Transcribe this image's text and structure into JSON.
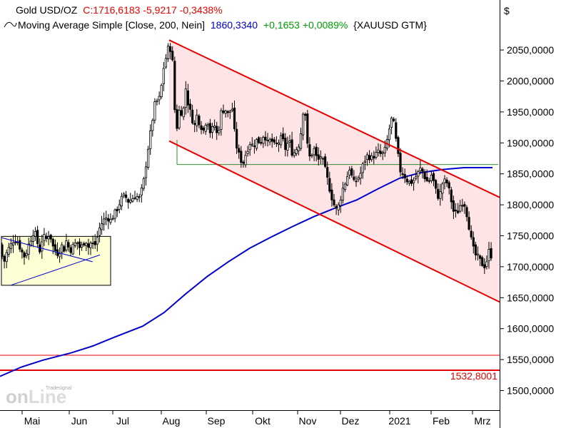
{
  "title": {
    "instrument": "Gold USD/OZ",
    "quote": "C:1716,6183 -5,9217 -0,3438%",
    "indicator": "Moving Average Simple [Close, 200, Nein]",
    "ma_value": "1860,3340",
    "ma_change": "+0,1653 +0,0089%",
    "symbol": "{XAUUSD GTM}"
  },
  "currency_symbol": "$",
  "annotation_label": "1532,8001",
  "logo": {
    "top": "Tradesignal",
    "word_a": "on",
    "word_b": "Line"
  },
  "colors": {
    "bull_candle": "#ffffff",
    "bear_candle": "#000000",
    "moving_average": "#0000cc",
    "channel": "#e60000",
    "channel_fill": "#ffe4e6",
    "box_fill": "#ffffd6",
    "support_line": "#2e8b2e",
    "negative_text": "#e60000",
    "positive_text": "#009900"
  },
  "chart_data": {
    "type": "candlestick",
    "x": [
      "Mai",
      "Jun",
      "Jul",
      "Aug",
      "Sep",
      "Okt",
      "Nov",
      "Dez",
      "2021",
      "Feb",
      "Mrz"
    ],
    "yticks": [
      1500,
      1550,
      1600,
      1650,
      1700,
      1750,
      1800,
      1850,
      1900,
      1950,
      2000,
      2050
    ],
    "ytick_labels": [
      "1500,0000",
      "1550,0000",
      "1600,0000",
      "1650,0000",
      "1700,0000",
      "1750,0000",
      "1800,0000",
      "1850,0000",
      "1900,0000",
      "1950,0000",
      "2000,0000",
      "2050,0000"
    ],
    "ylim": [
      1475,
      2090
    ],
    "close_path": [
      [
        0,
        1735
      ],
      [
        5,
        1705
      ],
      [
        10,
        1725
      ],
      [
        15,
        1735
      ],
      [
        20,
        1745
      ],
      [
        25,
        1740
      ],
      [
        30,
        1725
      ],
      [
        35,
        1715
      ],
      [
        40,
        1735
      ],
      [
        45,
        1750
      ],
      [
        48,
        1760
      ],
      [
        52,
        1740
      ],
      [
        56,
        1725
      ],
      [
        60,
        1750
      ],
      [
        65,
        1745
      ],
      [
        70,
        1755
      ],
      [
        73,
        1735
      ],
      [
        78,
        1725
      ],
      [
        82,
        1720
      ],
      [
        86,
        1735
      ],
      [
        90,
        1728
      ],
      [
        93,
        1742
      ],
      [
        98,
        1725
      ],
      [
        103,
        1735
      ],
      [
        108,
        1740
      ],
      [
        112,
        1730
      ],
      [
        116,
        1735
      ],
      [
        120,
        1745
      ],
      [
        123,
        1730
      ],
      [
        127,
        1738
      ],
      [
        133,
        1735
      ],
      [
        137,
        1750
      ],
      [
        140,
        1765
      ],
      [
        145,
        1775
      ],
      [
        150,
        1780
      ],
      [
        155,
        1775
      ],
      [
        160,
        1785
      ],
      [
        165,
        1795
      ],
      [
        170,
        1810
      ],
      [
        175,
        1815
      ],
      [
        180,
        1805
      ],
      [
        185,
        1810
      ],
      [
        190,
        1815
      ],
      [
        195,
        1810
      ],
      [
        200,
        1830
      ],
      [
        203,
        1850
      ],
      [
        206,
        1880
      ],
      [
        210,
        1910
      ],
      [
        214,
        1940
      ],
      [
        218,
        1970
      ],
      [
        222,
        1965
      ],
      [
        226,
        1990
      ],
      [
        229,
        2020
      ],
      [
        233,
        2040
      ],
      [
        237,
        2060
      ],
      [
        240,
        2045
      ],
      [
        243,
        2020
      ],
      [
        246,
        1910
      ],
      [
        249,
        1935
      ],
      [
        252,
        1960
      ],
      [
        256,
        1940
      ],
      [
        260,
        1990
      ],
      [
        264,
        1960
      ],
      [
        268,
        1945
      ],
      [
        272,
        1925
      ],
      [
        276,
        1945
      ],
      [
        280,
        1930
      ],
      [
        285,
        1920
      ],
      [
        290,
        1940
      ],
      [
        295,
        1915
      ],
      [
        300,
        1930
      ],
      [
        305,
        1910
      ],
      [
        310,
        1950
      ],
      [
        315,
        1955
      ],
      [
        320,
        1945
      ],
      [
        325,
        1960
      ],
      [
        330,
        1900
      ],
      [
        335,
        1880
      ],
      [
        340,
        1865
      ],
      [
        345,
        1885
      ],
      [
        350,
        1900
      ],
      [
        355,
        1895
      ],
      [
        360,
        1905
      ],
      [
        365,
        1900
      ],
      [
        370,
        1915
      ],
      [
        375,
        1900
      ],
      [
        380,
        1905
      ],
      [
        385,
        1895
      ],
      [
        390,
        1900
      ],
      [
        395,
        1910
      ],
      [
        400,
        1890
      ],
      [
        405,
        1905
      ],
      [
        410,
        1880
      ],
      [
        415,
        1890
      ],
      [
        420,
        1900
      ],
      [
        425,
        1955
      ],
      [
        428,
        1945
      ],
      [
        432,
        1875
      ],
      [
        436,
        1880
      ],
      [
        440,
        1890
      ],
      [
        445,
        1870
      ],
      [
        450,
        1880
      ],
      [
        455,
        1860
      ],
      [
        460,
        1835
      ],
      [
        464,
        1815
      ],
      [
        468,
        1800
      ],
      [
        472,
        1790
      ],
      [
        476,
        1805
      ],
      [
        480,
        1825
      ],
      [
        485,
        1840
      ],
      [
        490,
        1860
      ],
      [
        495,
        1835
      ],
      [
        500,
        1840
      ],
      [
        505,
        1850
      ],
      [
        510,
        1870
      ],
      [
        515,
        1880
      ],
      [
        520,
        1875
      ],
      [
        525,
        1880
      ],
      [
        530,
        1885
      ],
      [
        535,
        1880
      ],
      [
        540,
        1890
      ],
      [
        545,
        1920
      ],
      [
        550,
        1945
      ],
      [
        553,
        1920
      ],
      [
        557,
        1885
      ],
      [
        561,
        1855
      ],
      [
        565,
        1850
      ],
      [
        570,
        1840
      ],
      [
        575,
        1835
      ],
      [
        580,
        1840
      ],
      [
        585,
        1850
      ],
      [
        590,
        1860
      ],
      [
        595,
        1845
      ],
      [
        600,
        1835
      ],
      [
        605,
        1850
      ],
      [
        610,
        1825
      ],
      [
        615,
        1810
      ],
      [
        620,
        1835
      ],
      [
        625,
        1840
      ],
      [
        630,
        1820
      ],
      [
        635,
        1790
      ],
      [
        640,
        1785
      ],
      [
        645,
        1800
      ],
      [
        650,
        1805
      ],
      [
        655,
        1780
      ],
      [
        660,
        1745
      ],
      [
        665,
        1720
      ],
      [
        670,
        1715
      ],
      [
        675,
        1705
      ],
      [
        680,
        1700
      ],
      [
        685,
        1725
      ],
      [
        689,
        1716
      ]
    ],
    "moving_average": {
      "name": "Moving Average Simple [Close, 200, Nein]",
      "path": [
        [
          0,
          1523
        ],
        [
          30,
          1538
        ],
        [
          60,
          1549
        ],
        [
          100,
          1561
        ],
        [
          130,
          1572
        ],
        [
          160,
          1586
        ],
        [
          200,
          1604
        ],
        [
          230,
          1626
        ],
        [
          260,
          1656
        ],
        [
          290,
          1684
        ],
        [
          320,
          1708
        ],
        [
          350,
          1730
        ],
        [
          380,
          1748
        ],
        [
          410,
          1765
        ],
        [
          440,
          1781
        ],
        [
          470,
          1795
        ],
        [
          500,
          1808
        ],
        [
          530,
          1826
        ],
        [
          560,
          1843
        ],
        [
          590,
          1852
        ],
        [
          620,
          1857
        ],
        [
          650,
          1860
        ],
        [
          690,
          1860
        ]
      ]
    },
    "channel": {
      "upper": [
        [
          237,
          2066
        ],
        [
          700,
          1812
        ]
      ],
      "lower": [
        [
          237,
          1903
        ],
        [
          700,
          1643
        ]
      ]
    },
    "support_line": {
      "y": 1865,
      "x_range": [
        248,
        698
      ]
    },
    "triangle_box": {
      "x_range": [
        2,
        155
      ],
      "y_range": [
        1670,
        1749
      ]
    },
    "triangle_lines": [
      [
        [
          2,
          1747
        ],
        [
          130,
          1708
        ]
      ],
      [
        [
          15,
          1670
        ],
        [
          140,
          1719
        ]
      ]
    ],
    "horizontal_lines": [
      {
        "y": 1557,
        "color": "#e60000",
        "width": 1
      },
      {
        "y": 1532.8,
        "color": "#e60000",
        "width": 2
      }
    ],
    "grid": false,
    "legend": "top-left"
  }
}
